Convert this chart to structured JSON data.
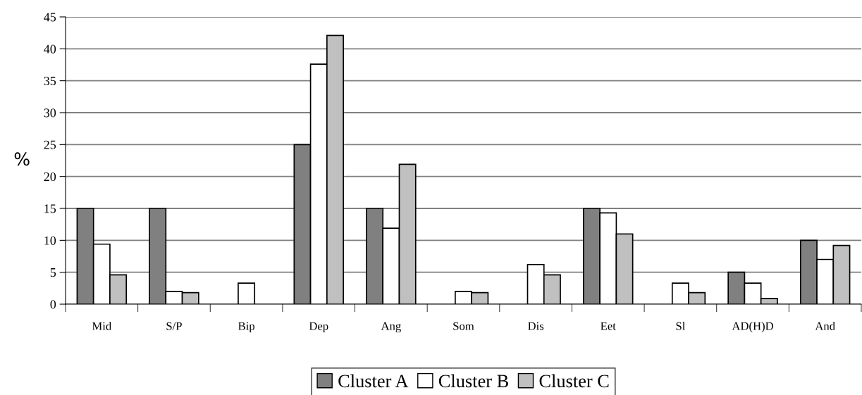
{
  "chart_data": {
    "type": "bar",
    "ylabel": "%",
    "categories": [
      "Mid",
      "S/P",
      "Bip",
      "Dep",
      "Ang",
      "Som",
      "Dis",
      "Eet",
      "Sl",
      "AD(H)D",
      "And"
    ],
    "series": [
      {
        "name": "Cluster A",
        "color": "#808080",
        "values": [
          15,
          15,
          null,
          25,
          15,
          null,
          null,
          15,
          null,
          5,
          10
        ]
      },
      {
        "name": "Cluster B",
        "color": "#ffffff",
        "values": [
          9.4,
          2.0,
          3.3,
          37.6,
          11.9,
          2.0,
          6.2,
          14.3,
          3.3,
          3.3,
          7.0
        ]
      },
      {
        "name": "Cluster C",
        "color": "#c0c0c0",
        "values": [
          4.6,
          1.8,
          null,
          42.1,
          21.9,
          1.8,
          4.6,
          11.0,
          1.8,
          0.9,
          9.2
        ]
      }
    ],
    "ylim": [
      0,
      45
    ],
    "yticks": [
      0,
      5,
      10,
      15,
      20,
      25,
      30,
      35,
      40,
      45
    ],
    "grid": "y",
    "legend": "bottom"
  }
}
